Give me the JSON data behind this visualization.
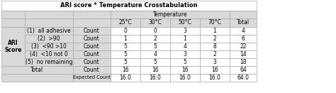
{
  "title": "ARI score * Temperature Crosstabulation",
  "temp_header": "Temperature",
  "row_label_1": "ARI",
  "row_label_2": "Score",
  "col_labels": [
    "25°C",
    "30°C",
    "50°C",
    "70°C",
    "Total"
  ],
  "rows": [
    [
      "(1)  all adhesive",
      "Count",
      "0",
      "0",
      "3",
      "1",
      "4"
    ],
    [
      "(2)  >90",
      "Count",
      "1",
      "2",
      "1",
      "2",
      "6"
    ],
    [
      "(3)  <90 >10",
      "Count",
      "5",
      "5",
      "4",
      "8",
      "22"
    ],
    [
      "(4)  <10 not 0",
      "Count",
      "5",
      "4",
      "3",
      "2",
      "14"
    ],
    [
      "(5)  no remaining",
      "Count",
      "5",
      "5",
      "5",
      "3",
      "18"
    ]
  ],
  "total_count_row": [
    "Total",
    "Count",
    "16",
    "16",
    "16",
    "16",
    "64"
  ],
  "total_exp_row": [
    "",
    "Expected Count",
    "16.0",
    "16.0",
    "16.0",
    "16.0",
    "64.0"
  ],
  "bg_gray": "#d9d9d9",
  "bg_white": "#ffffff",
  "text_color": "#000000",
  "border_color": "#aaaaaa",
  "title_fontsize": 6.0,
  "header_fontsize": 5.5,
  "cell_fontsize": 5.5,
  "small_fontsize": 4.8
}
